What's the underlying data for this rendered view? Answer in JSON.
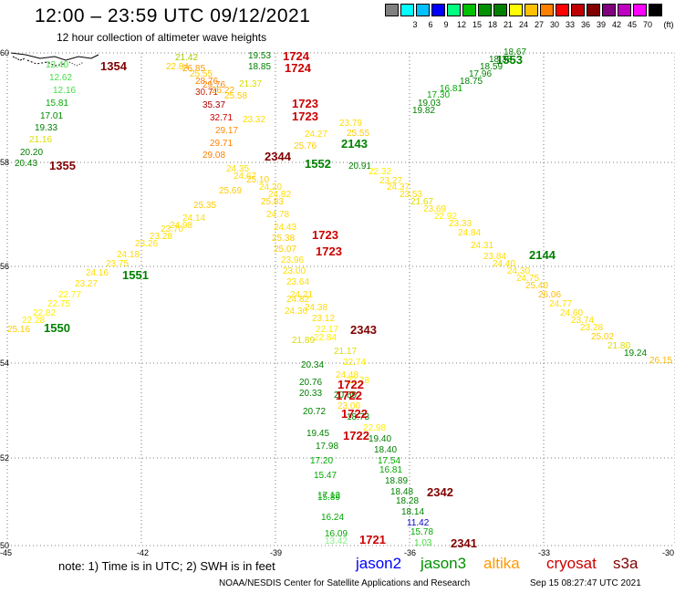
{
  "title": "12:00 – 23:59 UTC 09/12/2021",
  "subtitle": "12 hour collection of altimeter wave heights",
  "colorbar": {
    "unit": "(ft)",
    "entries": [
      {
        "label": "",
        "color": "#808080"
      },
      {
        "label": "3",
        "color": "#00ffff"
      },
      {
        "label": "6",
        "color": "#00c0ff"
      },
      {
        "label": "9",
        "color": "#0000ff"
      },
      {
        "label": "12",
        "color": "#00ff80"
      },
      {
        "label": "15",
        "color": "#00c000"
      },
      {
        "label": "18",
        "color": "#009000"
      },
      {
        "label": "21",
        "color": "#008000"
      },
      {
        "label": "24",
        "color": "#ffff00"
      },
      {
        "label": "27",
        "color": "#ffc000"
      },
      {
        "label": "30",
        "color": "#ff8000"
      },
      {
        "label": "33",
        "color": "#ff0000"
      },
      {
        "label": "36",
        "color": "#c00000"
      },
      {
        "label": "39",
        "color": "#800000"
      },
      {
        "label": "42",
        "color": "#800080"
      },
      {
        "label": "45",
        "color": "#c000c0"
      },
      {
        "label": "70",
        "color": "#ff00ff"
      },
      {
        "label": "",
        "color": "#000000"
      }
    ]
  },
  "axes": {
    "lon_ticks": [
      "-45",
      "-42",
      "-39",
      "-36",
      "-33",
      "-30"
    ],
    "lat_ticks": [
      "60",
      "58",
      "56",
      "54",
      "52",
      "50"
    ]
  },
  "passes": [
    {
      "label": "1724",
      "color": "#cc0000"
    },
    {
      "label": "1724",
      "color": "#cc0000"
    },
    {
      "label": "1354",
      "color": "#800000"
    },
    {
      "label": "1553",
      "color": "#008000"
    },
    {
      "label": "1723",
      "color": "#cc0000"
    },
    {
      "label": "1723",
      "color": "#cc0000"
    },
    {
      "label": "2143",
      "color": "#008000"
    },
    {
      "label": "2344",
      "color": "#800000"
    },
    {
      "label": "1552",
      "color": "#008000"
    },
    {
      "label": "1355",
      "color": "#800000"
    },
    {
      "label": "1723",
      "color": "#cc0000"
    },
    {
      "label": "1723",
      "color": "#cc0000"
    },
    {
      "label": "2144",
      "color": "#008000"
    },
    {
      "label": "1551",
      "color": "#008000"
    },
    {
      "label": "1550",
      "color": "#008000"
    },
    {
      "label": "2343",
      "color": "#800000"
    },
    {
      "label": "1722",
      "color": "#cc0000"
    },
    {
      "label": "1722",
      "color": "#cc0000"
    },
    {
      "label": "1722",
      "color": "#cc0000"
    },
    {
      "label": "1722",
      "color": "#cc0000"
    },
    {
      "label": "2342",
      "color": "#800000"
    },
    {
      "label": "1721",
      "color": "#cc0000"
    },
    {
      "label": "2341",
      "color": "#800000"
    }
  ],
  "obs": [
    {
      "t": "21.42",
      "c": "#aacc00"
    },
    {
      "t": "22.84",
      "c": "#ffd000"
    },
    {
      "t": "26.85",
      "c": "#ff9900"
    },
    {
      "t": "25.55",
      "c": "#ffcc00"
    },
    {
      "t": "28.76",
      "c": "#ff8000"
    },
    {
      "t": "29.76",
      "c": "#ff8000"
    },
    {
      "t": "30.71",
      "c": "#cc2200"
    },
    {
      "t": "26.22",
      "c": "#ffaa00"
    },
    {
      "t": "35.37",
      "c": "#aa0000"
    },
    {
      "t": "25.58",
      "c": "#ffcc00"
    },
    {
      "t": "32.71",
      "c": "#cc0000"
    },
    {
      "t": "29.17",
      "c": "#ff8800"
    },
    {
      "t": "29.71",
      "c": "#ff8000"
    },
    {
      "t": "29.08",
      "c": "#ff8000"
    },
    {
      "t": "21.37",
      "c": "#dddd00"
    },
    {
      "t": "23.32",
      "c": "#ffdd00"
    },
    {
      "t": "19.53",
      "c": "#008000"
    },
    {
      "t": "18.85",
      "c": "#008000"
    },
    {
      "t": "12.40",
      "c": "#44dd44"
    },
    {
      "t": "12.62",
      "c": "#44dd44"
    },
    {
      "t": "12.16",
      "c": "#44dd44"
    },
    {
      "t": "15.81",
      "c": "#00aa00"
    },
    {
      "t": "17.01",
      "c": "#008800"
    },
    {
      "t": "19.33",
      "c": "#008000"
    },
    {
      "t": "21.16",
      "c": "#dddd00"
    },
    {
      "t": "20.20",
      "c": "#008000"
    },
    {
      "t": "20.43",
      "c": "#008000"
    },
    {
      "t": "18.67",
      "c": "#008000"
    },
    {
      "t": "18.38",
      "c": "#008000"
    },
    {
      "t": "18.59",
      "c": "#008000"
    },
    {
      "t": "17.96",
      "c": "#008800"
    },
    {
      "t": "18.75",
      "c": "#008000"
    },
    {
      "t": "16.81",
      "c": "#00aa00"
    },
    {
      "t": "17.30",
      "c": "#00aa00"
    },
    {
      "t": "19.03",
      "c": "#008000"
    },
    {
      "t": "19.82",
      "c": "#008000"
    },
    {
      "t": "23.79",
      "c": "#ffdd00"
    },
    {
      "t": "25.55",
      "c": "#ffcc00"
    },
    {
      "t": "24.27",
      "c": "#ffdd00"
    },
    {
      "t": "25.76",
      "c": "#ffcc00"
    },
    {
      "t": "20.91",
      "c": "#008000"
    },
    {
      "t": "22.32",
      "c": "#ffee00"
    },
    {
      "t": "23.27",
      "c": "#ffdd00"
    },
    {
      "t": "24.37",
      "c": "#ffdd00"
    },
    {
      "t": "23.53",
      "c": "#ffdd00"
    },
    {
      "t": "21.67",
      "c": "#dddd00"
    },
    {
      "t": "23.69",
      "c": "#ffdd00"
    },
    {
      "t": "22.92",
      "c": "#ffee00"
    },
    {
      "t": "23.33",
      "c": "#ffdd00"
    },
    {
      "t": "24.84",
      "c": "#ffdd00"
    },
    {
      "t": "24.31",
      "c": "#ffdd00"
    },
    {
      "t": "23.84",
      "c": "#ffdd00"
    },
    {
      "t": "24.40",
      "c": "#ffdd00"
    },
    {
      "t": "24.30",
      "c": "#ffdd00"
    },
    {
      "t": "24.75",
      "c": "#ffdd00"
    },
    {
      "t": "25.40",
      "c": "#ffcc00"
    },
    {
      "t": "26.06",
      "c": "#ffbb00"
    },
    {
      "t": "24.77",
      "c": "#ffdd00"
    },
    {
      "t": "24.60",
      "c": "#ffdd00"
    },
    {
      "t": "23.74",
      "c": "#ffdd00"
    },
    {
      "t": "23.28",
      "c": "#ffdd00"
    },
    {
      "t": "25.02",
      "c": "#ffcc00"
    },
    {
      "t": "21.80",
      "c": "#dddd00"
    },
    {
      "t": "19.24",
      "c": "#008000"
    },
    {
      "t": "26.15",
      "c": "#ffbb00"
    },
    {
      "t": "24.35",
      "c": "#ffdd00"
    },
    {
      "t": "24.67",
      "c": "#ffdd00"
    },
    {
      "t": "25.10",
      "c": "#ffcc00"
    },
    {
      "t": "24.20",
      "c": "#ffdd00"
    },
    {
      "t": "25.69",
      "c": "#ffcc00"
    },
    {
      "t": "24.82",
      "c": "#ffdd00"
    },
    {
      "t": "25.35",
      "c": "#ffcc00"
    },
    {
      "t": "25.83",
      "c": "#ffcc00"
    },
    {
      "t": "24.78",
      "c": "#ffdd00"
    },
    {
      "t": "24.14",
      "c": "#ffdd00"
    },
    {
      "t": "24.98",
      "c": "#ffdd00"
    },
    {
      "t": "23.70",
      "c": "#ffdd00"
    },
    {
      "t": "23.28",
      "c": "#ffdd00"
    },
    {
      "t": "23.26",
      "c": "#ffdd00"
    },
    {
      "t": "24.18",
      "c": "#ffdd00"
    },
    {
      "t": "23.75",
      "c": "#ffdd00"
    },
    {
      "t": "24.16",
      "c": "#ffdd00"
    },
    {
      "t": "23.27",
      "c": "#ffdd00"
    },
    {
      "t": "22.77",
      "c": "#ffee00"
    },
    {
      "t": "22.75",
      "c": "#ffee00"
    },
    {
      "t": "22.82",
      "c": "#ffee00"
    },
    {
      "t": "22.28",
      "c": "#ffee00"
    },
    {
      "t": "25.16",
      "c": "#ffcc00"
    },
    {
      "t": "24.43",
      "c": "#ffdd00"
    },
    {
      "t": "25.38",
      "c": "#ffcc00"
    },
    {
      "t": "25.07",
      "c": "#ffcc00"
    },
    {
      "t": "23.96",
      "c": "#ffdd00"
    },
    {
      "t": "23.00",
      "c": "#ffdd00"
    },
    {
      "t": "23.64",
      "c": "#ffdd00"
    },
    {
      "t": "24.21",
      "c": "#ffdd00"
    },
    {
      "t": "24.82",
      "c": "#ffdd00"
    },
    {
      "t": "24.38",
      "c": "#ffdd00"
    },
    {
      "t": "24.36",
      "c": "#ffdd00"
    },
    {
      "t": "23.12",
      "c": "#ffdd00"
    },
    {
      "t": "22.17",
      "c": "#ffee00"
    },
    {
      "t": "22.84",
      "c": "#ffee00"
    },
    {
      "t": "21.89",
      "c": "#dddd00"
    },
    {
      "t": "21.17",
      "c": "#dddd00"
    },
    {
      "t": "22.74",
      "c": "#ffee00"
    },
    {
      "t": "20.34",
      "c": "#008000"
    },
    {
      "t": "24.48",
      "c": "#ffdd00"
    },
    {
      "t": "20.76",
      "c": "#008000"
    },
    {
      "t": "22.78",
      "c": "#ffee00"
    },
    {
      "t": "20.33",
      "c": "#008000"
    },
    {
      "t": "20.69",
      "c": "#008000"
    },
    {
      "t": "23.00",
      "c": "#ffdd00"
    },
    {
      "t": "20.72",
      "c": "#008000"
    },
    {
      "t": "18.73",
      "c": "#008000"
    },
    {
      "t": "22.98",
      "c": "#ffee00"
    },
    {
      "t": "19.45",
      "c": "#008000"
    },
    {
      "t": "19.40",
      "c": "#008000"
    },
    {
      "t": "17.98",
      "c": "#008800"
    },
    {
      "t": "18.40",
      "c": "#008000"
    },
    {
      "t": "17.20",
      "c": "#00aa00"
    },
    {
      "t": "17.54",
      "c": "#00aa00"
    },
    {
      "t": "16.81",
      "c": "#00aa00"
    },
    {
      "t": "18.89",
      "c": "#008000"
    },
    {
      "t": "15.47",
      "c": "#00aa00"
    },
    {
      "t": "18.48",
      "c": "#008000"
    },
    {
      "t": "17.12",
      "c": "#00aa00"
    },
    {
      "t": "18.28",
      "c": "#008000"
    },
    {
      "t": "15.89",
      "c": "#00aa00"
    },
    {
      "t": "18.14",
      "c": "#008000"
    },
    {
      "t": "16.24",
      "c": "#00aa00"
    },
    {
      "t": "11.42",
      "c": "#0000cc"
    },
    {
      "t": "15.78",
      "c": "#00aa00"
    },
    {
      "t": "16.09",
      "c": "#00aa00"
    },
    {
      "t": "13.42",
      "c": "#88ee88"
    },
    {
      "t": "1.03",
      "c": "#44dd44"
    }
  ],
  "note": "note: 1) Time is in UTC; 2) SWH is in feet",
  "satellites": [
    {
      "name": "jason2",
      "color": "#0000ff"
    },
    {
      "name": "jason3",
      "color": "#009000"
    },
    {
      "name": "altika",
      "color": "#ff9900"
    },
    {
      "name": "cryosat",
      "color": "#cc0000"
    },
    {
      "name": "s3a",
      "color": "#800000"
    }
  ],
  "footer": {
    "center": "NOAA/NESDIS Center for Satellite Applications and Research",
    "timestamp": "Sep 15 08:27:47 UTC 2021"
  }
}
